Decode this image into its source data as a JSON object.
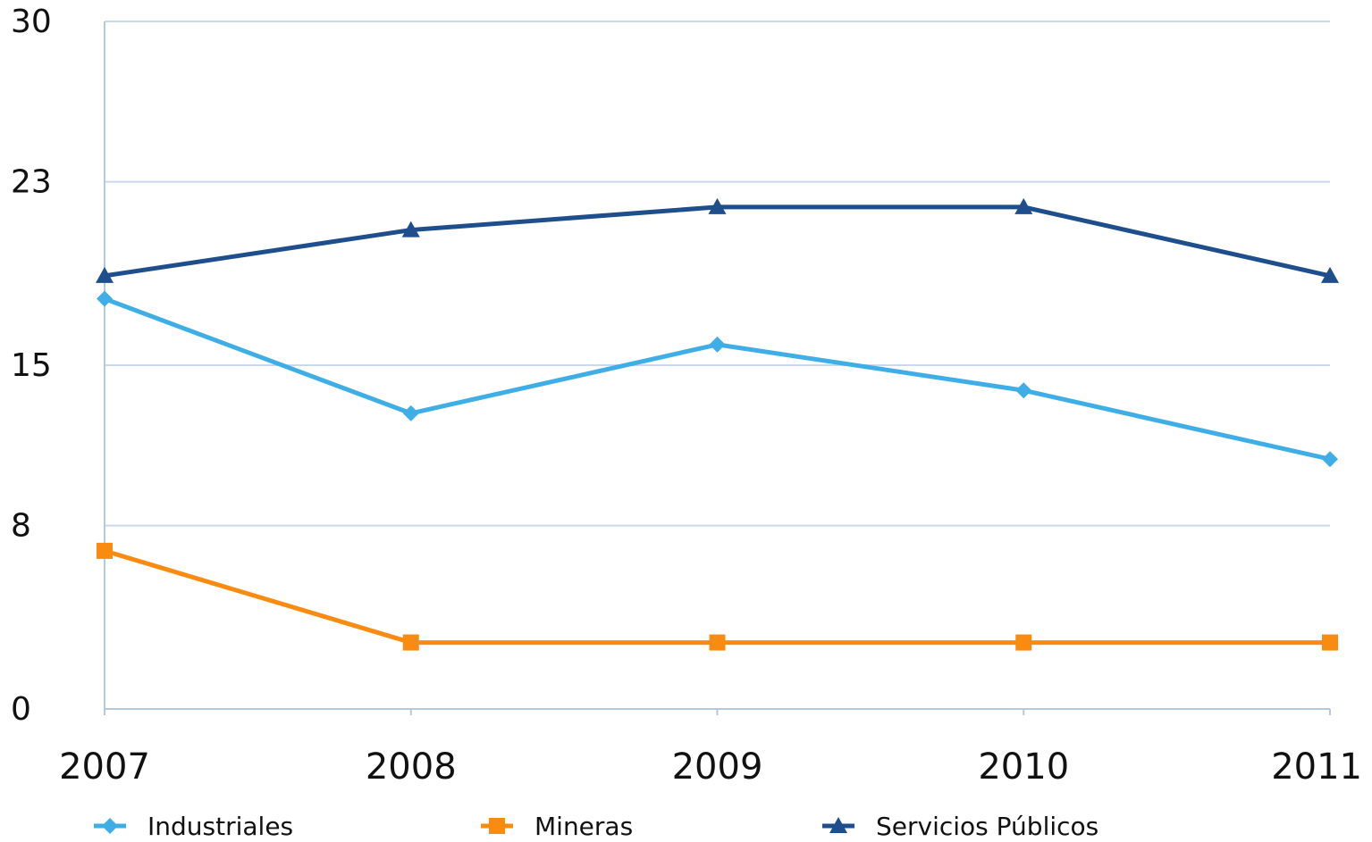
{
  "chart_data": {
    "type": "line",
    "categories": [
      "2007",
      "2008",
      "2009",
      "2010",
      "2011"
    ],
    "y_ticks": [
      "0",
      "8",
      "15",
      "23",
      "30"
    ],
    "ylim": [
      0,
      30
    ],
    "grid": true,
    "legend_position": "bottom",
    "title": "",
    "xlabel": "",
    "ylabel": "",
    "series": [
      {
        "name": "Industriales",
        "values": [
          17.9,
          12.9,
          15.9,
          13.9,
          10.9
        ],
        "color": "#3faee6",
        "marker": "diamond"
      },
      {
        "name": "Mineras",
        "values": [
          6.9,
          2.9,
          2.9,
          2.9,
          2.9
        ],
        "color": "#f98c10",
        "marker": "square"
      },
      {
        "name": "Servicios Públicos",
        "values": [
          18.9,
          20.9,
          21.9,
          21.9,
          18.9
        ],
        "color": "#1f4e8c",
        "marker": "triangle"
      }
    ],
    "gridline_color": "#c9d9ea",
    "axis_color": "#b6c8dc"
  }
}
